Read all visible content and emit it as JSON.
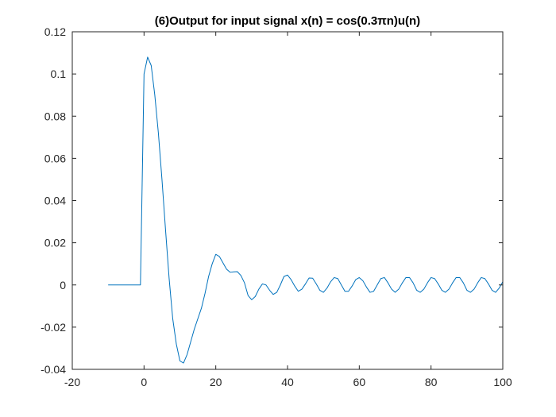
{
  "chart_data": {
    "type": "line",
    "title": "(6)Output for input signal x(n) = cos(0.3πn)u(n)",
    "xlabel": "",
    "ylabel": "",
    "xlim": [
      -20,
      100
    ],
    "ylim": [
      -0.04,
      0.12
    ],
    "grid": false,
    "x_ticks": [
      -20,
      0,
      20,
      40,
      60,
      80,
      100
    ],
    "y_ticks": [
      -0.04,
      -0.02,
      0,
      0.02,
      0.04,
      0.06,
      0.08,
      0.1,
      0.12
    ],
    "x_tick_labels": [
      "-20",
      "0",
      "20",
      "40",
      "60",
      "80",
      "100"
    ],
    "y_tick_labels": [
      "-0.04",
      "-0.02",
      "0",
      "0.02",
      "0.04",
      "0.06",
      "0.08",
      "0.1",
      "0.12"
    ],
    "series": [
      {
        "color": "#0072BD",
        "x": [
          -10,
          -9,
          -8,
          -7,
          -6,
          -5,
          -4,
          -3,
          -2,
          -1,
          0,
          1,
          2,
          3,
          4,
          5,
          6,
          7,
          8,
          9,
          10,
          11,
          12,
          13,
          14,
          15,
          16,
          17,
          18,
          19,
          20,
          21,
          22,
          23,
          24,
          25,
          26,
          27,
          28,
          29,
          30,
          31,
          32,
          33,
          34,
          35,
          36,
          37,
          38,
          39,
          40,
          41,
          42,
          43,
          44,
          45,
          46,
          47,
          48,
          49,
          50,
          51,
          52,
          53,
          54,
          55,
          56,
          57,
          58,
          59,
          60,
          61,
          62,
          63,
          64,
          65,
          66,
          67,
          68,
          69,
          70,
          71,
          72,
          73,
          74,
          75,
          76,
          77,
          78,
          79,
          80,
          81,
          82,
          83,
          84,
          85,
          86,
          87,
          88,
          89,
          90,
          91,
          92,
          93,
          94,
          95,
          96,
          97,
          98,
          99,
          100
        ],
        "y": [
          0,
          0,
          0,
          0,
          0,
          0,
          0,
          0,
          0,
          0,
          0.1,
          0.108,
          0.104,
          0.09,
          0.072,
          0.05,
          0.026,
          0.003,
          -0.016,
          -0.028,
          -0.036,
          -0.037,
          -0.033,
          -0.027,
          -0.021,
          -0.016,
          -0.011,
          -0.004,
          0.004,
          0.01,
          0.0145,
          0.0135,
          0.0105,
          0.0075,
          0.006,
          0.0062,
          0.0063,
          0.0045,
          0.001,
          -0.005,
          -0.007,
          -0.0055,
          -0.002,
          0.0005,
          0.0,
          -0.0025,
          -0.0045,
          -0.0035,
          0.0,
          0.004,
          0.0047,
          0.0025,
          -0.0005,
          -0.003,
          -0.002,
          0.0005,
          0.0033,
          0.0032,
          0.0005,
          -0.0025,
          -0.0035,
          -0.0015,
          0.0015,
          0.0035,
          0.003,
          0.0,
          -0.003,
          -0.003,
          -0.0005,
          0.0025,
          0.0035,
          0.002,
          -0.001,
          -0.0035,
          -0.003,
          0.0,
          0.003,
          0.0035,
          0.001,
          -0.002,
          -0.0035,
          -0.002,
          0.001,
          0.0035,
          0.0035,
          0.001,
          -0.0025,
          -0.0035,
          -0.002,
          0.001,
          0.0035,
          0.003,
          0.0005,
          -0.0025,
          -0.0035,
          -0.002,
          0.001,
          0.0035,
          0.0035,
          0.001,
          -0.0025,
          -0.0035,
          -0.002,
          0.001,
          0.0035,
          0.003,
          0.0005,
          -0.0025,
          -0.0035,
          -0.0015,
          0.0015
        ]
      }
    ]
  }
}
